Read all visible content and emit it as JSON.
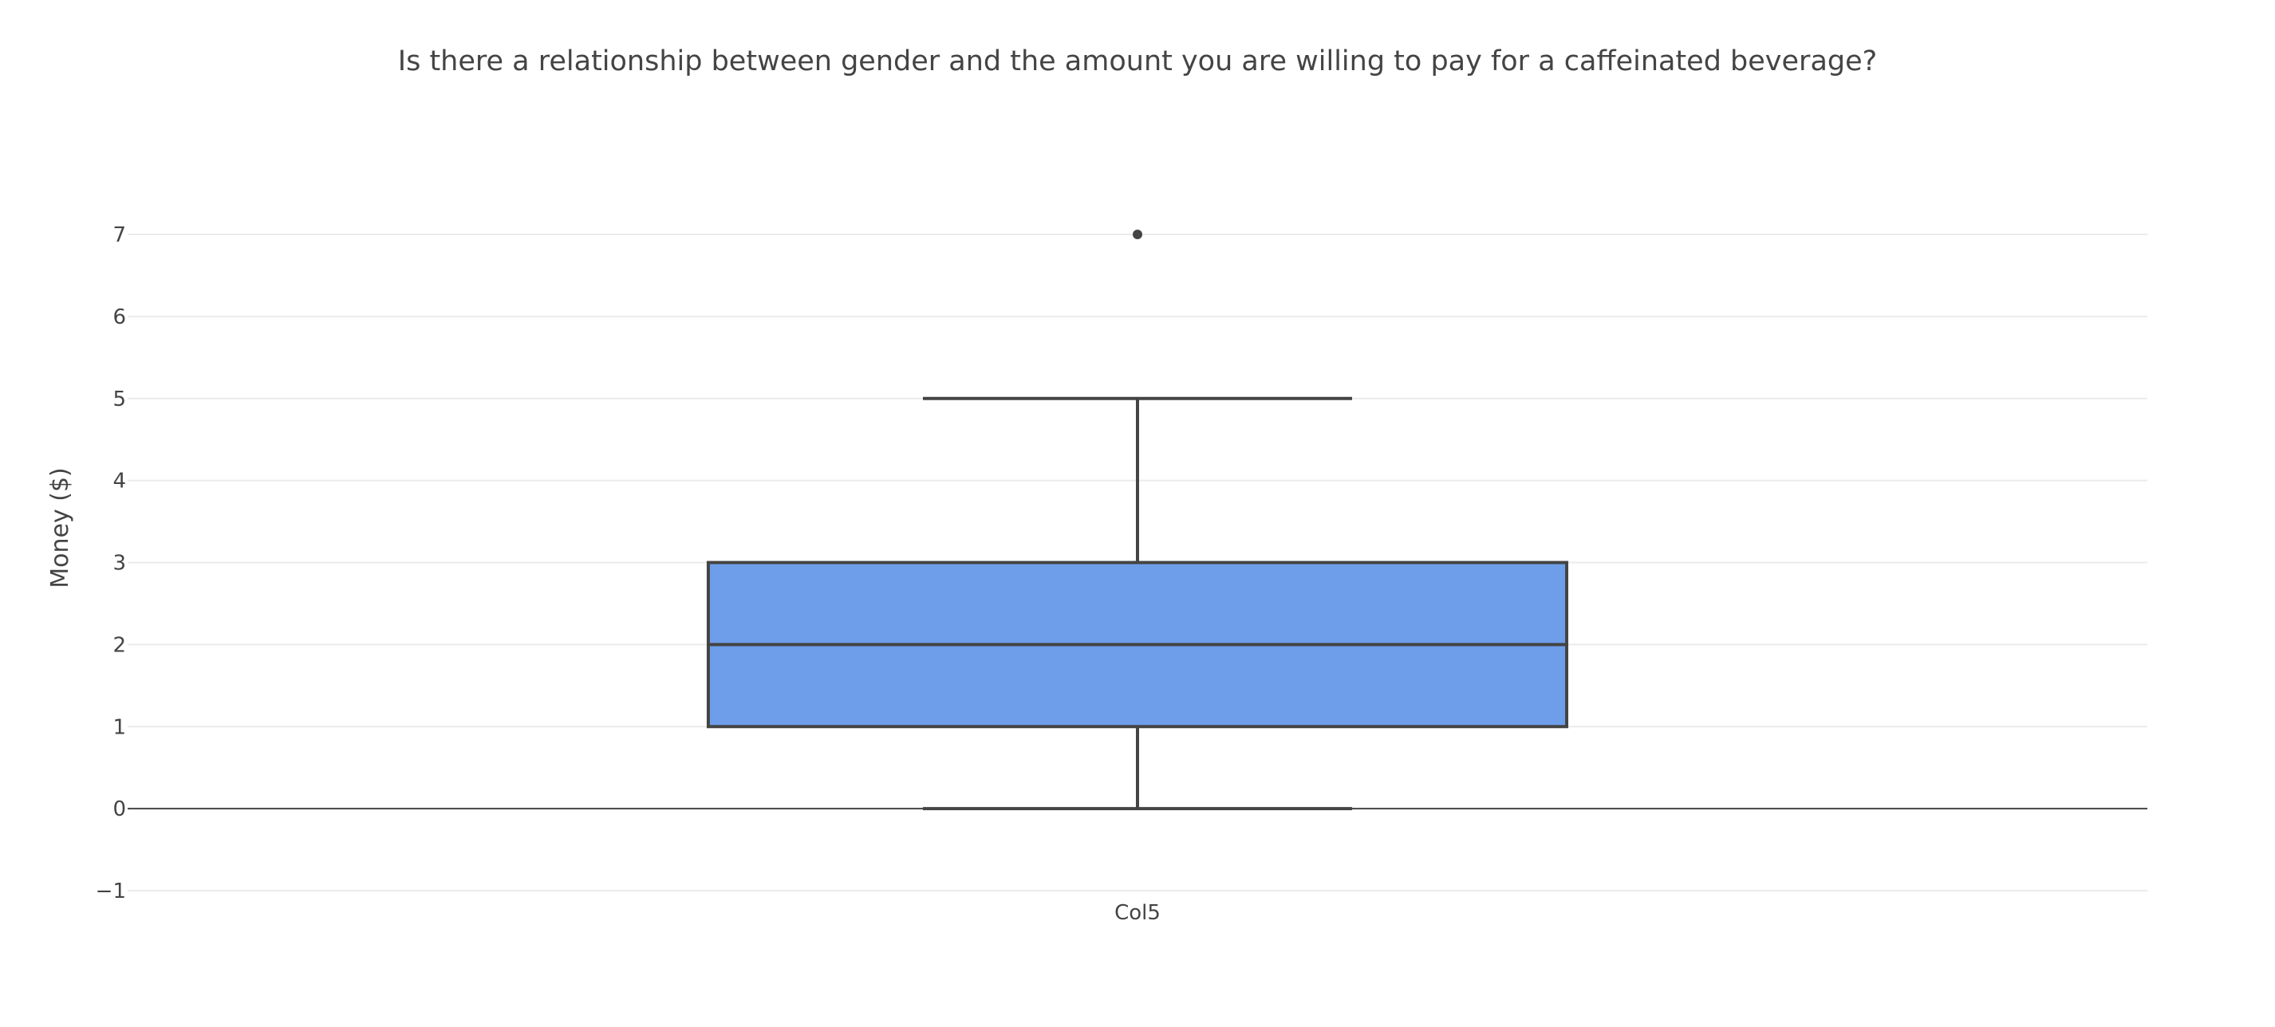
{
  "chart_data": {
    "type": "box",
    "title": "Is there a relationship between gender and the amount you are willing to pay for a caffeinated beverage?",
    "ylabel": "Money ($)",
    "xlabel": "",
    "ylim": [
      -1,
      7
    ],
    "yticks": [
      -1,
      0,
      1,
      2,
      3,
      4,
      5,
      6,
      7
    ],
    "ytick_labels": [
      "−1",
      "0",
      "1",
      "2",
      "3",
      "4",
      "5",
      "6",
      "7"
    ],
    "grid": true,
    "legend": "none",
    "series": [
      {
        "category": "Col5",
        "min": 0,
        "q1": 1,
        "median": 2,
        "q3": 3,
        "max": 5,
        "outliers": [
          7
        ]
      }
    ]
  },
  "colors": {
    "box_fill": "#6e9eea",
    "box_line": "#444444",
    "grid": "#ebebeb",
    "zero_line": "#444444",
    "text": "#444444"
  }
}
